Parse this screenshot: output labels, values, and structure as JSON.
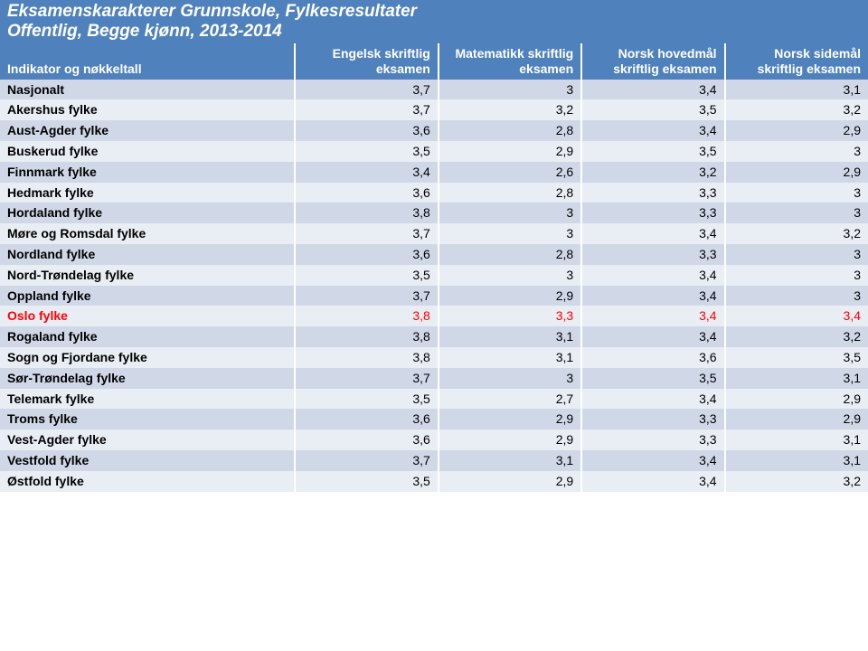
{
  "title": "Eksamenskarakterer Grunnskole, Fylkesresultater",
  "subtitle": "Offentlig, Begge kjønn, 2013-2014",
  "colors": {
    "header_bg": "#4f81bd",
    "header_text": "#ffffff",
    "row_even": "#d0d8e8",
    "row_odd": "#e9edf4",
    "row_highlight_text": "#ff0000",
    "cell_divider": "#ffffff"
  },
  "columns": [
    "Indikator og nøkkeltall",
    "Engelsk skriftlig eksamen",
    "Matematikk skriftlig eksamen",
    "Norsk hovedmål skriftlig eksamen",
    "Norsk sidemål skriftlig eksamen"
  ],
  "column_widths_pct": [
    34,
    16.5,
    16.5,
    16.5,
    16.5
  ],
  "rows": [
    {
      "label": "Nasjonalt",
      "values": [
        "3,7",
        "3",
        "3,4",
        "3,1"
      ],
      "highlight": false
    },
    {
      "label": "Akershus fylke",
      "values": [
        "3,7",
        "3,2",
        "3,5",
        "3,2"
      ],
      "highlight": false
    },
    {
      "label": "Aust-Agder fylke",
      "values": [
        "3,6",
        "2,8",
        "3,4",
        "2,9"
      ],
      "highlight": false
    },
    {
      "label": "Buskerud fylke",
      "values": [
        "3,5",
        "2,9",
        "3,5",
        "3"
      ],
      "highlight": false
    },
    {
      "label": "Finnmark fylke",
      "values": [
        "3,4",
        "2,6",
        "3,2",
        "2,9"
      ],
      "highlight": false
    },
    {
      "label": "Hedmark fylke",
      "values": [
        "3,6",
        "2,8",
        "3,3",
        "3"
      ],
      "highlight": false
    },
    {
      "label": "Hordaland fylke",
      "values": [
        "3,8",
        "3",
        "3,3",
        "3"
      ],
      "highlight": false
    },
    {
      "label": "Møre og Romsdal fylke",
      "values": [
        "3,7",
        "3",
        "3,4",
        "3,2"
      ],
      "highlight": false
    },
    {
      "label": "Nordland fylke",
      "values": [
        "3,6",
        "2,8",
        "3,3",
        "3"
      ],
      "highlight": false
    },
    {
      "label": "Nord-Trøndelag fylke",
      "values": [
        "3,5",
        "3",
        "3,4",
        "3"
      ],
      "highlight": false
    },
    {
      "label": "Oppland fylke",
      "values": [
        "3,7",
        "2,9",
        "3,4",
        "3"
      ],
      "highlight": false
    },
    {
      "label": "Oslo fylke",
      "values": [
        "3,8",
        "3,3",
        "3,4",
        "3,4"
      ],
      "highlight": true
    },
    {
      "label": "Rogaland fylke",
      "values": [
        "3,8",
        "3,1",
        "3,4",
        "3,2"
      ],
      "highlight": false
    },
    {
      "label": "Sogn og Fjordane fylke",
      "values": [
        "3,8",
        "3,1",
        "3,6",
        "3,5"
      ],
      "highlight": false
    },
    {
      "label": "Sør-Trøndelag fylke",
      "values": [
        "3,7",
        "3",
        "3,5",
        "3,1"
      ],
      "highlight": false
    },
    {
      "label": "Telemark fylke",
      "values": [
        "3,5",
        "2,7",
        "3,4",
        "2,9"
      ],
      "highlight": false
    },
    {
      "label": "Troms fylke",
      "values": [
        "3,6",
        "2,9",
        "3,3",
        "2,9"
      ],
      "highlight": false
    },
    {
      "label": "Vest-Agder fylke",
      "values": [
        "3,6",
        "2,9",
        "3,3",
        "3,1"
      ],
      "highlight": false
    },
    {
      "label": "Vestfold fylke",
      "values": [
        "3,7",
        "3,1",
        "3,4",
        "3,1"
      ],
      "highlight": false
    },
    {
      "label": "Østfold fylke",
      "values": [
        "3,5",
        "2,9",
        "3,4",
        "3,2"
      ],
      "highlight": false
    }
  ]
}
